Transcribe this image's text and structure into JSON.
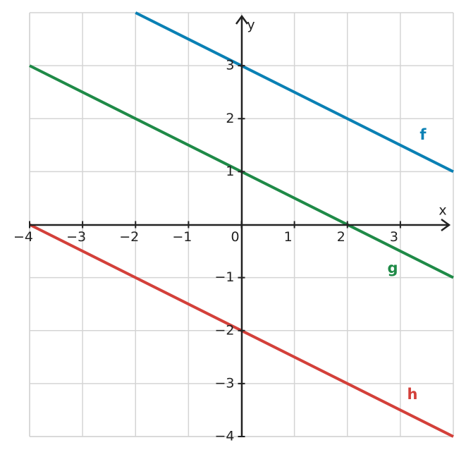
{
  "chart_data": {
    "type": "line",
    "x_label": "x",
    "y_label": "y",
    "xlim": [
      -4,
      4
    ],
    "ylim": [
      -4,
      4
    ],
    "xticks": [
      {
        "value": -4,
        "label": "−4"
      },
      {
        "value": -3,
        "label": "−3"
      },
      {
        "value": -2,
        "label": "−2"
      },
      {
        "value": -1,
        "label": "−1"
      },
      0,
      1,
      2,
      3
    ],
    "yticks": [
      {
        "value": -4,
        "label": "−4"
      },
      {
        "value": -3,
        "label": "−3"
      },
      {
        "value": -2,
        "label": "−2"
      },
      {
        "value": -1,
        "label": "−1"
      },
      1,
      2,
      3
    ],
    "grid": true,
    "series": [
      {
        "name": "f",
        "color": "#0a80b4",
        "x": [
          -2,
          4
        ],
        "values": [
          4,
          1
        ]
      },
      {
        "name": "g",
        "color": "#1f8a47",
        "x": [
          -4,
          4
        ],
        "values": [
          3,
          -1
        ]
      },
      {
        "name": "h",
        "color": "#d3403a",
        "x": [
          -4,
          4
        ],
        "values": [
          0,
          -4
        ]
      }
    ]
  }
}
